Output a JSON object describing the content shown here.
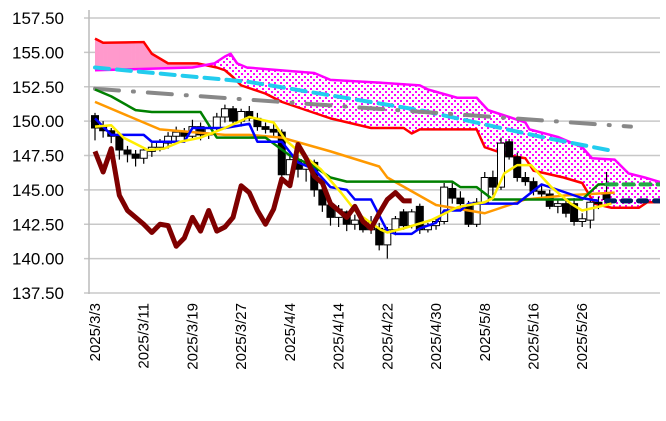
{
  "chart_data": {
    "type": "candlestick-ichimoku",
    "title": "",
    "ylim": [
      137.5,
      157.5
    ],
    "grid": true,
    "y_ticks": [
      "157.50",
      "155.00",
      "152.50",
      "150.00",
      "147.50",
      "145.00",
      "142.50",
      "140.00",
      "137.50"
    ],
    "y_tick_values": [
      157.5,
      155,
      152.5,
      150,
      147.5,
      145,
      142.5,
      140,
      137.5
    ],
    "x_ticks": [
      {
        "index": 0,
        "label": "2025/3/3"
      },
      {
        "index": 6,
        "label": "2025/3/11"
      },
      {
        "index": 12,
        "label": "2025/3/19"
      },
      {
        "index": 18,
        "label": "2025/3/27"
      },
      {
        "index": 24,
        "label": "2025/4/4"
      },
      {
        "index": 30,
        "label": "2025/4/14"
      },
      {
        "index": 36,
        "label": "2025/4/22"
      },
      {
        "index": 42,
        "label": "2025/4/30"
      },
      {
        "index": 48,
        "label": "2025/5/8"
      },
      {
        "index": 54,
        "label": "2025/5/16"
      },
      {
        "index": 60,
        "label": "2025/5/26"
      }
    ],
    "x_range": [
      0,
      70
    ],
    "candles_ohlc": [
      [
        150.4,
        150.6,
        148.6,
        149.5
      ],
      [
        149.6,
        150.0,
        148.8,
        149.3
      ],
      [
        149.3,
        149.5,
        148.4,
        148.9
      ],
      [
        148.9,
        149.2,
        147.2,
        147.9
      ],
      [
        147.9,
        148.2,
        147.0,
        147.6
      ],
      [
        147.6,
        147.9,
        146.7,
        147.3
      ],
      [
        147.3,
        148.1,
        146.9,
        147.9
      ],
      [
        147.8,
        148.4,
        147.4,
        148.1
      ],
      [
        148.1,
        148.7,
        147.8,
        148.5
      ],
      [
        148.4,
        149.2,
        148.0,
        148.9
      ],
      [
        148.9,
        149.6,
        148.5,
        149.2
      ],
      [
        149.2,
        149.5,
        148.6,
        148.9
      ],
      [
        148.9,
        150.1,
        148.7,
        149.6
      ],
      [
        149.6,
        149.9,
        148.6,
        149.0
      ],
      [
        149.0,
        149.8,
        148.7,
        149.5
      ],
      [
        149.5,
        150.6,
        149.2,
        150.3
      ],
      [
        150.3,
        151.2,
        149.9,
        150.9
      ],
      [
        150.9,
        151.1,
        149.8,
        150.0
      ],
      [
        150.0,
        150.9,
        149.6,
        150.7
      ],
      [
        150.7,
        151.1,
        150.0,
        150.2
      ],
      [
        150.2,
        150.6,
        149.3,
        149.6
      ],
      [
        149.6,
        149.9,
        149.1,
        149.4
      ],
      [
        149.4,
        149.8,
        148.9,
        149.2
      ],
      [
        149.2,
        149.4,
        145.8,
        146.1
      ],
      [
        146.1,
        147.6,
        145.5,
        147.2
      ],
      [
        147.2,
        147.6,
        145.9,
        146.5
      ],
      [
        146.5,
        147.3,
        145.6,
        146.9
      ],
      [
        147.0,
        147.2,
        144.5,
        145.0
      ],
      [
        145.0,
        145.4,
        143.4,
        143.9
      ],
      [
        143.9,
        144.2,
        142.4,
        143.0
      ],
      [
        143.0,
        143.9,
        142.3,
        143.6
      ],
      [
        143.4,
        143.5,
        142.0,
        142.5
      ],
      [
        142.5,
        143.2,
        142.1,
        142.8
      ],
      [
        142.8,
        142.9,
        141.9,
        142.1
      ],
      [
        142.1,
        143.1,
        141.8,
        142.6
      ],
      [
        142.2,
        142.6,
        140.6,
        141.0
      ],
      [
        141.0,
        142.3,
        140.0,
        142.1
      ],
      [
        142.1,
        143.1,
        141.7,
        142.9
      ],
      [
        143.4,
        143.6,
        142.1,
        142.4
      ],
      [
        142.4,
        143.6,
        142.2,
        143.4
      ],
      [
        143.8,
        144.0,
        141.8,
        142.1
      ],
      [
        142.1,
        142.6,
        141.9,
        142.4
      ],
      [
        142.4,
        142.9,
        142.1,
        142.7
      ],
      [
        142.7,
        145.5,
        142.5,
        145.2
      ],
      [
        145.1,
        145.6,
        144.0,
        144.4
      ],
      [
        144.4,
        144.9,
        143.6,
        144.0
      ],
      [
        143.9,
        144.2,
        142.3,
        142.5
      ],
      [
        142.5,
        144.4,
        142.3,
        144.1
      ],
      [
        144.1,
        146.3,
        144.0,
        145.9
      ],
      [
        145.9,
        146.4,
        144.6,
        145.2
      ],
      [
        145.2,
        148.8,
        145.0,
        148.4
      ],
      [
        148.5,
        148.7,
        147.2,
        147.4
      ],
      [
        147.4,
        147.7,
        145.6,
        145.9
      ],
      [
        145.9,
        146.3,
        145.3,
        145.6
      ],
      [
        145.6,
        145.9,
        144.6,
        144.9
      ],
      [
        144.9,
        145.4,
        144.3,
        144.7
      ],
      [
        144.7,
        145.0,
        143.6,
        143.8
      ],
      [
        143.8,
        144.3,
        143.3,
        144.0
      ],
      [
        144.0,
        144.3,
        143.0,
        143.3
      ],
      [
        144.0,
        144.4,
        142.4,
        142.7
      ],
      [
        142.7,
        143.3,
        142.3,
        142.9
      ],
      [
        142.8,
        144.3,
        142.2,
        144.1
      ],
      [
        144.1,
        144.5,
        143.6,
        144.0
      ],
      [
        144.8,
        146.3,
        144.0,
        144.3
      ]
    ],
    "series": [
      {
        "name": "span-a",
        "color": "#ff0000",
        "width": 2.5,
        "points": [
          [
            0,
            156.0
          ],
          [
            1,
            155.7
          ],
          [
            6,
            155.75
          ],
          [
            7,
            154.9
          ],
          [
            9,
            154.2
          ],
          [
            12.6,
            154.2
          ],
          [
            15,
            153.9
          ],
          [
            16,
            153.7
          ],
          [
            17,
            153.2
          ],
          [
            18,
            152.6
          ],
          [
            21,
            152.0
          ],
          [
            23,
            151.4
          ],
          [
            26,
            150.8
          ],
          [
            29,
            150.2
          ],
          [
            34,
            149.5
          ],
          [
            38,
            149.5
          ],
          [
            39,
            149.1
          ],
          [
            40,
            149.4
          ],
          [
            47,
            149.4
          ],
          [
            48,
            148.1
          ],
          [
            51,
            147.5
          ],
          [
            53,
            147.3
          ],
          [
            54,
            146.4
          ],
          [
            57.7,
            145.9
          ],
          [
            60,
            145.5
          ],
          [
            61.5,
            144.0
          ],
          [
            63.6,
            143.7
          ],
          [
            67,
            143.7
          ],
          [
            68,
            144.1
          ],
          [
            70,
            144.1
          ]
        ]
      },
      {
        "name": "span-b",
        "color": "#ff00ff",
        "width": 2.5,
        "points": [
          [
            0,
            153.7
          ],
          [
            12,
            153.9
          ],
          [
            14.7,
            154.2
          ],
          [
            16,
            154.7
          ],
          [
            16.7,
            154.9
          ],
          [
            17.5,
            154.2
          ],
          [
            18.7,
            153.9
          ],
          [
            27,
            153.5
          ],
          [
            29,
            153.0
          ],
          [
            35,
            152.8
          ],
          [
            40,
            152.6
          ],
          [
            41,
            152.3
          ],
          [
            44.6,
            151.7
          ],
          [
            47,
            151.7
          ],
          [
            48.4,
            150.8
          ],
          [
            51,
            150.3
          ],
          [
            53,
            149.9
          ],
          [
            53.5,
            149.4
          ],
          [
            57,
            148.85
          ],
          [
            60,
            148.1
          ],
          [
            61.2,
            147.3
          ],
          [
            64,
            147.2
          ],
          [
            65.7,
            146.2
          ],
          [
            67.7,
            145.9
          ],
          [
            70,
            145.5
          ]
        ]
      },
      {
        "name": "ma-long-dashed",
        "color": "#22ccee",
        "width": 4,
        "dash": "14 8",
        "points": [
          [
            0,
            153.9
          ],
          [
            19,
            152.85
          ],
          [
            40,
            150.8
          ],
          [
            55,
            148.85
          ],
          [
            64,
            147.8
          ]
        ]
      },
      {
        "name": "ma-longest-dashdot",
        "color": "#888888",
        "width": 4,
        "dash": "24 14 1 14",
        "points": [
          [
            0,
            152.35
          ],
          [
            66,
            149.6
          ]
        ]
      },
      {
        "name": "mid-ma",
        "color": "#ff9900",
        "width": 2.5,
        "points": [
          [
            0,
            151.4
          ],
          [
            8,
            149.4
          ],
          [
            16,
            149.0
          ],
          [
            19,
            149.0
          ],
          [
            23,
            148.8
          ],
          [
            29,
            147.8
          ],
          [
            35,
            146.7
          ],
          [
            36,
            145.9
          ],
          [
            42,
            143.9
          ],
          [
            48,
            143.3
          ],
          [
            53,
            144.3
          ],
          [
            58,
            144.6
          ],
          [
            64,
            144.8
          ]
        ]
      },
      {
        "name": "kijun",
        "color": "#008000",
        "width": 2.5,
        "points": [
          [
            0,
            152.3
          ],
          [
            2,
            151.8
          ],
          [
            5,
            150.8
          ],
          [
            7,
            150.66
          ],
          [
            13,
            150.66
          ],
          [
            15,
            148.8
          ],
          [
            21,
            148.8
          ],
          [
            24,
            147.5
          ],
          [
            27,
            146.7
          ],
          [
            29,
            145.9
          ],
          [
            31,
            145.6
          ],
          [
            44,
            145.6
          ],
          [
            45,
            145.2
          ],
          [
            47,
            145.2
          ],
          [
            49,
            144.3
          ],
          [
            60,
            144.3
          ],
          [
            62,
            145.4
          ],
          [
            63,
            145.4
          ]
        ]
      },
      {
        "name": "kijun-future",
        "color": "#22aa44",
        "width": 4,
        "dash": "10 7",
        "points": [
          [
            63,
            145.4
          ],
          [
            70,
            145.4
          ]
        ]
      },
      {
        "name": "tenkan",
        "color": "#0000ff",
        "width": 2.5,
        "points": [
          [
            0,
            150.2
          ],
          [
            2,
            149.0
          ],
          [
            6,
            149.0
          ],
          [
            7,
            148.5
          ],
          [
            11,
            148.5
          ],
          [
            12,
            149.5
          ],
          [
            16,
            149.5
          ],
          [
            19,
            149.8
          ],
          [
            20,
            148.5
          ],
          [
            23,
            148.5
          ],
          [
            25,
            147.0
          ],
          [
            27,
            146.5
          ],
          [
            29,
            145.2
          ],
          [
            31,
            145.0
          ],
          [
            32,
            144.3
          ],
          [
            34,
            144.3
          ],
          [
            36,
            142.0
          ],
          [
            37,
            141.8
          ],
          [
            39,
            141.8
          ],
          [
            40,
            142.2
          ],
          [
            42,
            142.6
          ],
          [
            43,
            143.5
          ],
          [
            45,
            143.5
          ],
          [
            46,
            144.0
          ],
          [
            52,
            144.0
          ],
          [
            55,
            145.4
          ],
          [
            57,
            145.0
          ],
          [
            60,
            144.4
          ],
          [
            62,
            144.2
          ]
        ]
      },
      {
        "name": "tenkan-future",
        "color": "#002060",
        "width": 5,
        "dash": "8 8",
        "points": [
          [
            63,
            144.2
          ],
          [
            70,
            144.2
          ]
        ]
      },
      {
        "name": "short-ma",
        "color": "#ffee00",
        "width": 2.5,
        "points": [
          [
            0,
            149.6
          ],
          [
            2,
            149.7
          ],
          [
            3.5,
            148.8
          ],
          [
            6.5,
            147.9
          ],
          [
            8.5,
            148.0
          ],
          [
            10.5,
            148.5
          ],
          [
            13,
            148.8
          ],
          [
            16,
            149.5
          ],
          [
            19,
            150.3
          ],
          [
            22,
            149.9
          ],
          [
            23.5,
            148.6
          ],
          [
            25.3,
            147.7
          ],
          [
            27.8,
            146.5
          ],
          [
            30.3,
            144.8
          ],
          [
            32.3,
            143.3
          ],
          [
            35.2,
            142.1
          ],
          [
            36,
            141.9
          ],
          [
            38,
            142.2
          ],
          [
            41.4,
            142.8
          ],
          [
            44.7,
            143.75
          ],
          [
            48,
            144.1
          ],
          [
            49,
            144.4
          ],
          [
            50.4,
            146.2
          ],
          [
            52,
            146.8
          ],
          [
            53.7,
            146.8
          ],
          [
            56.2,
            145.2
          ],
          [
            58.6,
            144.0
          ],
          [
            60,
            143.5
          ],
          [
            61.5,
            143.7
          ],
          [
            63.6,
            144.0
          ]
        ]
      },
      {
        "name": "chikou",
        "color": "#7f0000",
        "width": 5,
        "points": [
          [
            0,
            147.8
          ],
          [
            1,
            146.3
          ],
          [
            2,
            148.0
          ],
          [
            3,
            144.6
          ],
          [
            4,
            143.5
          ],
          [
            5,
            143.0
          ],
          [
            6,
            142.5
          ],
          [
            7,
            141.9
          ],
          [
            8,
            142.5
          ],
          [
            9,
            142.4
          ],
          [
            10,
            140.9
          ],
          [
            11,
            141.5
          ],
          [
            12,
            143.0
          ],
          [
            13,
            142.0
          ],
          [
            14,
            143.5
          ],
          [
            15,
            142.0
          ],
          [
            16,
            142.3
          ],
          [
            17,
            143.0
          ],
          [
            18,
            145.3
          ],
          [
            19,
            144.8
          ],
          [
            20,
            143.5
          ],
          [
            21,
            142.5
          ],
          [
            22,
            143.6
          ],
          [
            23,
            145.8
          ],
          [
            24,
            145.3
          ],
          [
            25,
            148.3
          ],
          [
            26,
            147.3
          ],
          [
            27,
            146.0
          ],
          [
            28,
            145.5
          ],
          [
            29,
            144.0
          ],
          [
            30,
            143.5
          ],
          [
            31,
            143.0
          ],
          [
            32,
            143.8
          ],
          [
            33,
            142.7
          ],
          [
            34,
            142.2
          ],
          [
            35,
            143.3
          ],
          [
            36,
            144.3
          ],
          [
            37,
            144.8
          ],
          [
            38,
            144.2
          ],
          [
            39,
            144.2
          ]
        ]
      }
    ],
    "cloud_colors": {
      "bearish_fill": "#ff99cc",
      "bullish_dots": "#ff00ff"
    }
  }
}
